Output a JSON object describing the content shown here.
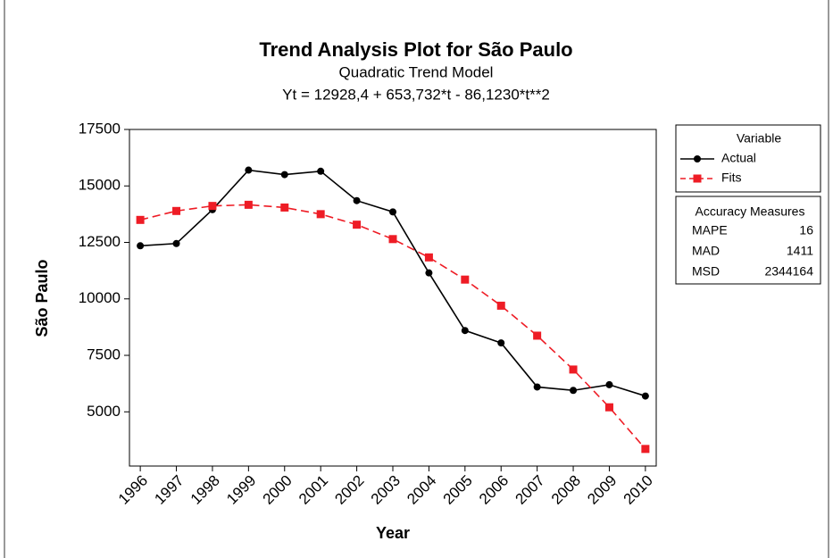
{
  "chart_data": {
    "type": "line",
    "title": "Trend Analysis Plot for São Paulo",
    "subtitle": "Quadratic Trend Model",
    "equation": "Yt = 12928,4 + 653,732*t - 86,1230*t**2",
    "x_label": "Year",
    "y_label": "São Paulo",
    "x": [
      1996,
      1997,
      1998,
      1999,
      2000,
      2001,
      2002,
      2003,
      2004,
      2005,
      2006,
      2007,
      2008,
      2009,
      2010
    ],
    "xlim": [
      1995.7,
      2010.3
    ],
    "xticks": [
      1996,
      1997,
      1998,
      1999,
      2000,
      2001,
      2002,
      2003,
      2004,
      2005,
      2006,
      2007,
      2008,
      2009,
      2010
    ],
    "ylim": [
      2600,
      17500
    ],
    "yticks": [
      5000,
      7500,
      10000,
      12500,
      15000,
      17500
    ],
    "legend_title": "Variable",
    "series": [
      {
        "name": "Actual",
        "color": "#000000",
        "marker": "circle",
        "dashed": false,
        "values": [
          12350,
          12450,
          13950,
          15700,
          15500,
          15650,
          14350,
          13850,
          11150,
          8600,
          8050,
          6100,
          5950,
          6200,
          5700
        ]
      },
      {
        "name": "Fits",
        "color": "#ee1c25",
        "marker": "square",
        "dashed": true,
        "values": [
          13496.0,
          13891.4,
          14114.5,
          14165.4,
          14044.0,
          13750.4,
          13284.5,
          12646.4,
          11836.0,
          10853.4,
          9698.6,
          8371.5,
          6872.1,
          5200.5,
          3356.7
        ]
      }
    ],
    "accuracy": {
      "title": "Accuracy Measures",
      "rows": [
        [
          "MAPE",
          16
        ],
        [
          "MAD",
          1411
        ],
        [
          "MSD",
          2344164
        ]
      ]
    }
  }
}
